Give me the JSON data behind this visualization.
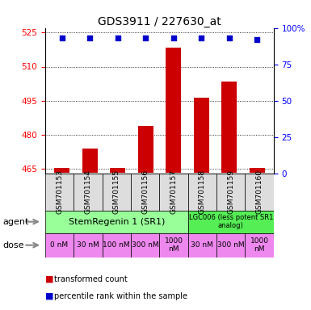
{
  "title": "GDS3911 / 227630_at",
  "samples": [
    "GSM701153",
    "GSM701154",
    "GSM701155",
    "GSM701156",
    "GSM701157",
    "GSM701158",
    "GSM701159",
    "GSM701160"
  ],
  "bar_values": [
    465.5,
    474.0,
    465.5,
    484.0,
    518.5,
    496.5,
    503.5,
    465.5
  ],
  "bar_base": 463.5,
  "percentile_values": [
    93,
    93,
    93,
    93,
    93,
    93,
    93,
    92
  ],
  "ylim_left": [
    463,
    527
  ],
  "ylim_right": [
    0,
    100
  ],
  "yticks_left": [
    465,
    480,
    495,
    510,
    525
  ],
  "yticks_right": [
    0,
    25,
    50,
    75,
    100
  ],
  "bar_color": "#cc0000",
  "dot_color": "#0000cc",
  "SR1_label": "StemRegenin 1 (SR1)",
  "LGC_label": "LGC006 (less potent SR1\nanalog)",
  "SR1_color": "#99ff99",
  "LGC_color": "#55ee55",
  "SR1_span": 5,
  "LGC_span": 3,
  "dose_labels": [
    "0 nM",
    "30 nM",
    "100 nM",
    "300 nM",
    "1000\nnM",
    "30 nM",
    "300 nM",
    "1000\nnM"
  ],
  "dose_color": "#ee88ee",
  "sample_box_color": "#dddddd",
  "agent_label": "agent",
  "dose_label": "dose",
  "legend_bar_label": "transformed count",
  "legend_dot_label": "percentile rank within the sample"
}
